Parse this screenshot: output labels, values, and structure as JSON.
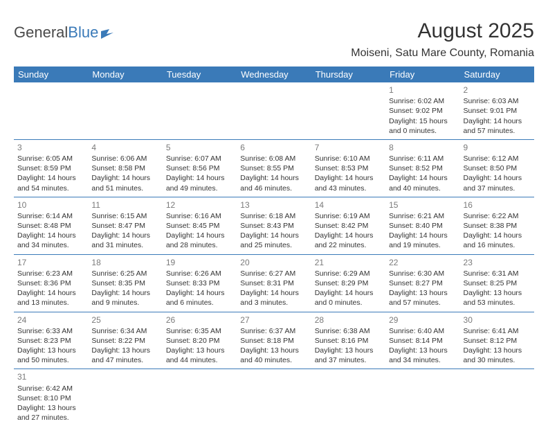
{
  "logo": {
    "text_gray": "General",
    "text_blue": "Blue"
  },
  "title": "August 2025",
  "location": "Moiseni, Satu Mare County, Romania",
  "colors": {
    "header_bg": "#3a7ab8",
    "header_fg": "#ffffff",
    "border": "#3a7ab8",
    "daynum": "#7a7a7a",
    "body_text": "#333333",
    "logo_gray": "#4a4a4a",
    "logo_blue": "#3a7ab8",
    "page_bg": "#ffffff"
  },
  "day_headers": [
    "Sunday",
    "Monday",
    "Tuesday",
    "Wednesday",
    "Thursday",
    "Friday",
    "Saturday"
  ],
  "weeks": [
    [
      null,
      null,
      null,
      null,
      null,
      {
        "n": "1",
        "sr": "6:02 AM",
        "ss": "9:02 PM",
        "dl1": "15 hours",
        "dl2": "and 0 minutes."
      },
      {
        "n": "2",
        "sr": "6:03 AM",
        "ss": "9:01 PM",
        "dl1": "14 hours",
        "dl2": "and 57 minutes."
      }
    ],
    [
      {
        "n": "3",
        "sr": "6:05 AM",
        "ss": "8:59 PM",
        "dl1": "14 hours",
        "dl2": "and 54 minutes."
      },
      {
        "n": "4",
        "sr": "6:06 AM",
        "ss": "8:58 PM",
        "dl1": "14 hours",
        "dl2": "and 51 minutes."
      },
      {
        "n": "5",
        "sr": "6:07 AM",
        "ss": "8:56 PM",
        "dl1": "14 hours",
        "dl2": "and 49 minutes."
      },
      {
        "n": "6",
        "sr": "6:08 AM",
        "ss": "8:55 PM",
        "dl1": "14 hours",
        "dl2": "and 46 minutes."
      },
      {
        "n": "7",
        "sr": "6:10 AM",
        "ss": "8:53 PM",
        "dl1": "14 hours",
        "dl2": "and 43 minutes."
      },
      {
        "n": "8",
        "sr": "6:11 AM",
        "ss": "8:52 PM",
        "dl1": "14 hours",
        "dl2": "and 40 minutes."
      },
      {
        "n": "9",
        "sr": "6:12 AM",
        "ss": "8:50 PM",
        "dl1": "14 hours",
        "dl2": "and 37 minutes."
      }
    ],
    [
      {
        "n": "10",
        "sr": "6:14 AM",
        "ss": "8:48 PM",
        "dl1": "14 hours",
        "dl2": "and 34 minutes."
      },
      {
        "n": "11",
        "sr": "6:15 AM",
        "ss": "8:47 PM",
        "dl1": "14 hours",
        "dl2": "and 31 minutes."
      },
      {
        "n": "12",
        "sr": "6:16 AM",
        "ss": "8:45 PM",
        "dl1": "14 hours",
        "dl2": "and 28 minutes."
      },
      {
        "n": "13",
        "sr": "6:18 AM",
        "ss": "8:43 PM",
        "dl1": "14 hours",
        "dl2": "and 25 minutes."
      },
      {
        "n": "14",
        "sr": "6:19 AM",
        "ss": "8:42 PM",
        "dl1": "14 hours",
        "dl2": "and 22 minutes."
      },
      {
        "n": "15",
        "sr": "6:21 AM",
        "ss": "8:40 PM",
        "dl1": "14 hours",
        "dl2": "and 19 minutes."
      },
      {
        "n": "16",
        "sr": "6:22 AM",
        "ss": "8:38 PM",
        "dl1": "14 hours",
        "dl2": "and 16 minutes."
      }
    ],
    [
      {
        "n": "17",
        "sr": "6:23 AM",
        "ss": "8:36 PM",
        "dl1": "14 hours",
        "dl2": "and 13 minutes."
      },
      {
        "n": "18",
        "sr": "6:25 AM",
        "ss": "8:35 PM",
        "dl1": "14 hours",
        "dl2": "and 9 minutes."
      },
      {
        "n": "19",
        "sr": "6:26 AM",
        "ss": "8:33 PM",
        "dl1": "14 hours",
        "dl2": "and 6 minutes."
      },
      {
        "n": "20",
        "sr": "6:27 AM",
        "ss": "8:31 PM",
        "dl1": "14 hours",
        "dl2": "and 3 minutes."
      },
      {
        "n": "21",
        "sr": "6:29 AM",
        "ss": "8:29 PM",
        "dl1": "14 hours",
        "dl2": "and 0 minutes."
      },
      {
        "n": "22",
        "sr": "6:30 AM",
        "ss": "8:27 PM",
        "dl1": "13 hours",
        "dl2": "and 57 minutes."
      },
      {
        "n": "23",
        "sr": "6:31 AM",
        "ss": "8:25 PM",
        "dl1": "13 hours",
        "dl2": "and 53 minutes."
      }
    ],
    [
      {
        "n": "24",
        "sr": "6:33 AM",
        "ss": "8:23 PM",
        "dl1": "13 hours",
        "dl2": "and 50 minutes."
      },
      {
        "n": "25",
        "sr": "6:34 AM",
        "ss": "8:22 PM",
        "dl1": "13 hours",
        "dl2": "and 47 minutes."
      },
      {
        "n": "26",
        "sr": "6:35 AM",
        "ss": "8:20 PM",
        "dl1": "13 hours",
        "dl2": "and 44 minutes."
      },
      {
        "n": "27",
        "sr": "6:37 AM",
        "ss": "8:18 PM",
        "dl1": "13 hours",
        "dl2": "and 40 minutes."
      },
      {
        "n": "28",
        "sr": "6:38 AM",
        "ss": "8:16 PM",
        "dl1": "13 hours",
        "dl2": "and 37 minutes."
      },
      {
        "n": "29",
        "sr": "6:40 AM",
        "ss": "8:14 PM",
        "dl1": "13 hours",
        "dl2": "and 34 minutes."
      },
      {
        "n": "30",
        "sr": "6:41 AM",
        "ss": "8:12 PM",
        "dl1": "13 hours",
        "dl2": "and 30 minutes."
      }
    ],
    [
      {
        "n": "31",
        "sr": "6:42 AM",
        "ss": "8:10 PM",
        "dl1": "13 hours",
        "dl2": "and 27 minutes."
      },
      null,
      null,
      null,
      null,
      null,
      null
    ]
  ],
  "labels": {
    "sunrise": "Sunrise: ",
    "sunset": "Sunset: ",
    "daylight": "Daylight: "
  }
}
